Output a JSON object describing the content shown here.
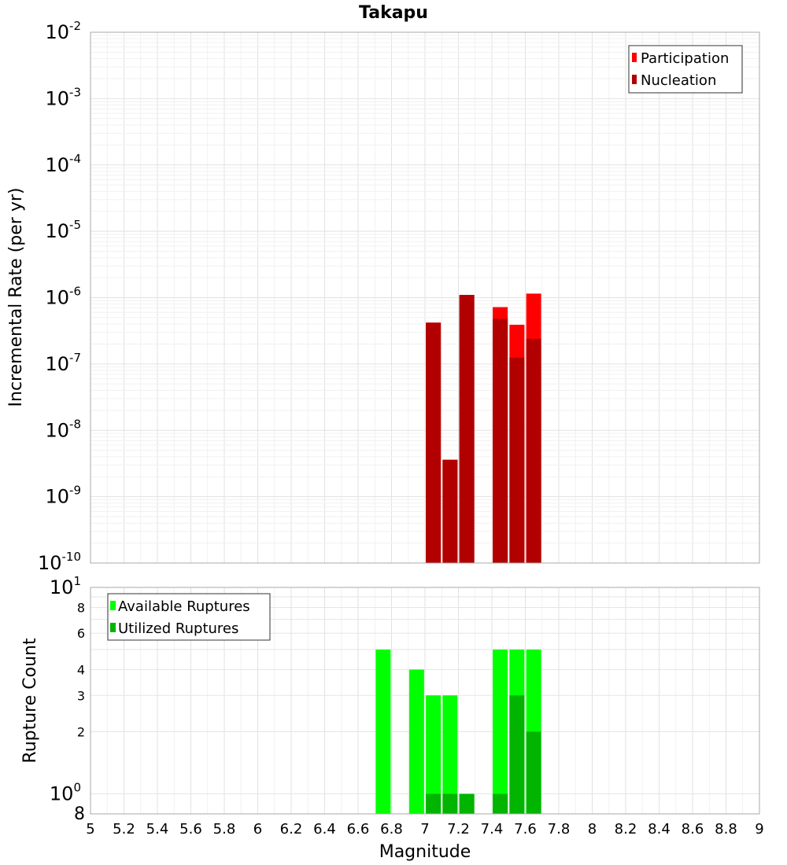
{
  "chart_data": [
    {
      "type": "bar",
      "title": "Takapu",
      "ylabel": "Incremental Rate (per yr)",
      "yscale": "log",
      "ylim": [
        1e-10,
        0.01
      ],
      "xlim": [
        5,
        9
      ],
      "grid": true,
      "legend_position": "top-right",
      "y_ticks": [
        {
          "base": "10",
          "exp": "-2"
        },
        {
          "base": "10",
          "exp": "-3"
        },
        {
          "base": "10",
          "exp": "-4"
        },
        {
          "base": "10",
          "exp": "-5"
        },
        {
          "base": "10",
          "exp": "-6"
        },
        {
          "base": "10",
          "exp": "-7"
        },
        {
          "base": "10",
          "exp": "-8"
        },
        {
          "base": "10",
          "exp": "-9"
        },
        {
          "base": "10",
          "exp": "-10"
        }
      ],
      "series": [
        {
          "name": "Participation",
          "color": "#ff0000",
          "x": [
            7.05,
            7.15,
            7.25,
            7.45,
            7.55,
            7.65
          ],
          "values": [
            4.2e-07,
            3.6e-09,
            1.1e-06,
            7.2e-07,
            3.9e-07,
            1.15e-06
          ]
        },
        {
          "name": "Nucleation",
          "color": "#b20000",
          "x": [
            7.05,
            7.15,
            7.25,
            7.45,
            7.55,
            7.65
          ],
          "values": [
            4.2e-07,
            3.6e-09,
            1.1e-06,
            4.8e-07,
            1.25e-07,
            2.4e-07
          ]
        }
      ]
    },
    {
      "type": "bar",
      "xlabel": "Magnitude",
      "ylabel": "Rupture Count",
      "yscale": "log",
      "ylim": [
        0.8,
        10
      ],
      "xlim": [
        5,
        9
      ],
      "grid": true,
      "legend_position": "top-left",
      "x_ticks": [
        "5",
        "5.2",
        "5.4",
        "5.6",
        "5.8",
        "6",
        "6.2",
        "6.4",
        "6.6",
        "6.8",
        "7",
        "7.2",
        "7.4",
        "7.6",
        "7.8",
        "8",
        "8.2",
        "8.4",
        "8.6",
        "8.8",
        "9"
      ],
      "y_ticks_major": [
        {
          "base": "10",
          "exp": "1",
          "value": 10
        },
        {
          "base": "10",
          "exp": "0",
          "value": 1
        }
      ],
      "y_ticks_minor": [
        {
          "label": "8",
          "value": 8
        },
        {
          "label": "6",
          "value": 6
        },
        {
          "label": "4",
          "value": 4
        },
        {
          "label": "3",
          "value": 3
        },
        {
          "label": "2",
          "value": 2
        }
      ],
      "y_bottom_label": "8",
      "series": [
        {
          "name": "Available Ruptures",
          "color": "#00ff00",
          "x": [
            6.75,
            6.95,
            7.05,
            7.15,
            7.25,
            7.45,
            7.55,
            7.65
          ],
          "values": [
            5,
            4,
            3,
            3,
            1,
            5,
            5,
            5
          ]
        },
        {
          "name": "Utilized Ruptures",
          "color": "#00b400",
          "x": [
            7.05,
            7.15,
            7.25,
            7.45,
            7.55,
            7.65
          ],
          "values": [
            1,
            1,
            1,
            1,
            3,
            2
          ]
        }
      ]
    }
  ]
}
